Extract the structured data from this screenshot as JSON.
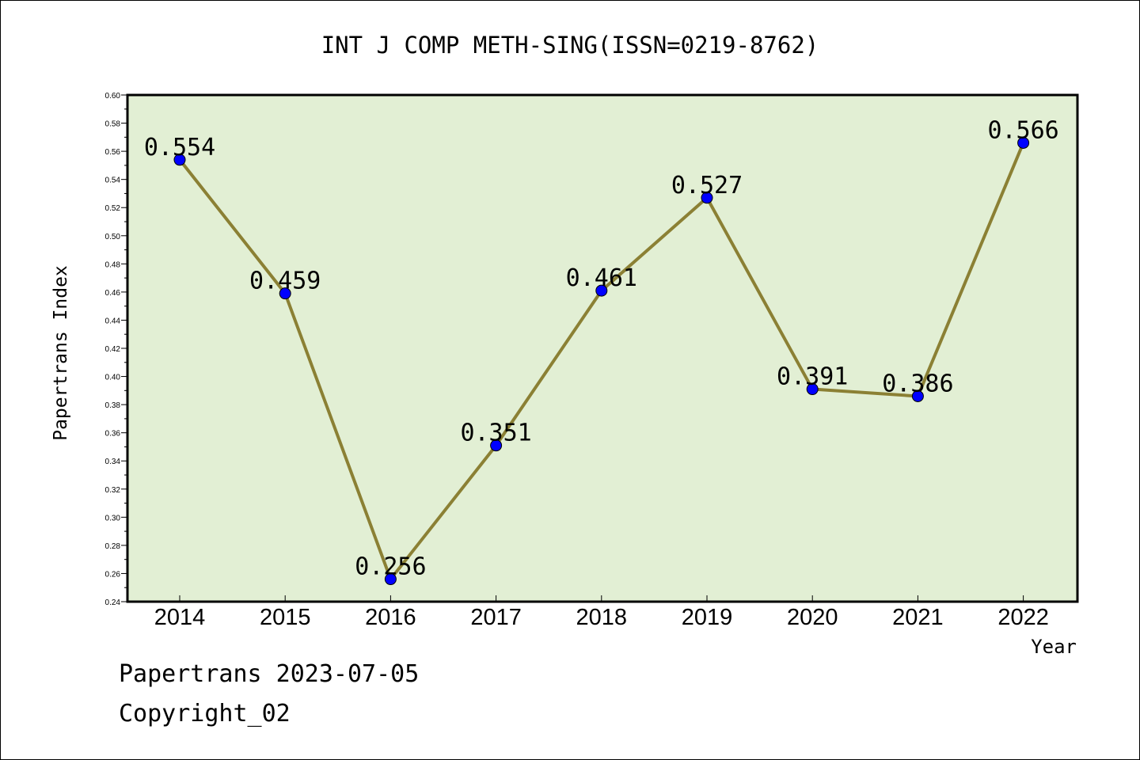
{
  "chart_data": {
    "type": "line",
    "title": "INT J COMP METH-SING(ISSN=0219-8762)",
    "xlabel": "Year",
    "ylabel": "Papertrans Index",
    "categories": [
      "2014",
      "2015",
      "2016",
      "2017",
      "2018",
      "2019",
      "2020",
      "2021",
      "2022"
    ],
    "series": [
      {
        "values": [
          0.554,
          0.459,
          0.256,
          0.351,
          0.461,
          0.527,
          0.391,
          0.386,
          0.566
        ],
        "data_labels": [
          "0.554",
          "0.459",
          "0.256",
          "0.351",
          "0.461",
          "0.527",
          "0.391",
          "0.386",
          "0.566"
        ]
      }
    ],
    "ylim": [
      0.24,
      0.6
    ],
    "yticks": [
      "0.24",
      "0.26",
      "0.28",
      "0.30",
      "0.32",
      "0.34",
      "0.36",
      "0.38",
      "0.40",
      "0.42",
      "0.44",
      "0.46",
      "0.48",
      "0.50",
      "0.52",
      "0.54",
      "0.56",
      "0.58",
      "0.60"
    ],
    "grid": false,
    "colors": {
      "plot_background": "#e2efd4",
      "line": "#8b8034",
      "marker": "#0000ff",
      "axis": "#000000"
    }
  },
  "footer": {
    "line1": "Papertrans 2023-07-05",
    "line2": "Copyright_02"
  }
}
